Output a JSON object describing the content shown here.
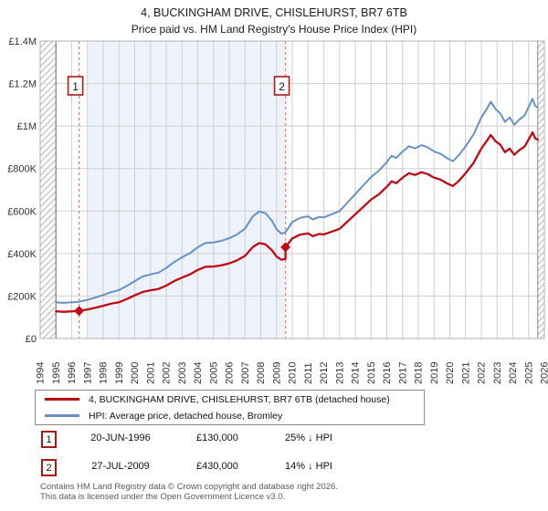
{
  "title": "4, BUCKINGHAM DRIVE, CHISLEHURST, BR7 6TB",
  "subtitle": "Price paid vs. HM Land Registry's House Price Index (HPI)",
  "colors": {
    "property_line": "#c00a14",
    "hpi_line": "#6790c4",
    "marker": "#c00a14",
    "event_dashed_line": "#f08080",
    "event_box_border": "#b01818",
    "shading": "#edf2fb",
    "grid": "#cfcfcf",
    "plot_border": "#b0b0b0",
    "hatch": "#b5b5b5",
    "data_edge_line": "#8a8a8a",
    "axis_text": "#333333"
  },
  "legend": [
    {
      "label": "4, BUCKINGHAM DRIVE, CHISLEHURST, BR7 6TB (detached house)",
      "color": "#c00a14"
    },
    {
      "label": "HPI: Average price, detached house, Bromley",
      "color": "#6790c4"
    }
  ],
  "events": [
    {
      "num": "1",
      "date": "20-JUN-1996",
      "price": "£130,000",
      "hpi_note": "25% ↓ HPI",
      "year": 1996.47,
      "value_k": 130
    },
    {
      "num": "2",
      "date": "27-JUL-2009",
      "price": "£430,000",
      "hpi_note": "14% ↓ HPI",
      "year": 2009.57,
      "value_k": 430
    }
  ],
  "footer": {
    "line1": "Contains HM Land Registry data © Crown copyright and database right 2026.",
    "line2": "This data is licensed under the Open Government Licence v3.0."
  },
  "chart_data": {
    "type": "line",
    "x_range": [
      1994,
      2026
    ],
    "y_range_k": [
      0,
      1400
    ],
    "grid": true,
    "legend_position": "bottom",
    "x_ticks": [
      1994,
      1995,
      1996,
      1997,
      1998,
      1999,
      2000,
      2001,
      2002,
      2003,
      2004,
      2005,
      2006,
      2007,
      2008,
      2009,
      2010,
      2011,
      2012,
      2013,
      2014,
      2015,
      2016,
      2017,
      2018,
      2019,
      2020,
      2021,
      2022,
      2023,
      2024,
      2025,
      2026
    ],
    "y_ticks": [
      {
        "v": 0,
        "label": "£0"
      },
      {
        "v": 200,
        "label": "£200K"
      },
      {
        "v": 400,
        "label": "£400K"
      },
      {
        "v": 600,
        "label": "£600K"
      },
      {
        "v": 800,
        "label": "£800K"
      },
      {
        "v": 1000,
        "label": "£1M"
      },
      {
        "v": 1200,
        "label": "£1.2M"
      },
      {
        "v": 1400,
        "label": "£1.4M"
      }
    ],
    "data_start_year": 1995.0,
    "data_end_year": 2025.58,
    "shaded_region_years": [
      1997.0,
      2009.57
    ],
    "event_marker_years": [
      1996.47,
      2009.57
    ],
    "series": [
      {
        "name": "HPI: Average price, detached house, Bromley",
        "color": "#6790c4",
        "width": 2,
        "x": [
          1995.0,
          1995.5,
          1996.0,
          1996.47,
          1997.0,
          1997.5,
          1998.0,
          1998.5,
          1999.0,
          1999.5,
          2000.0,
          2000.5,
          2001.0,
          2001.5,
          2002.0,
          2002.5,
          2003.0,
          2003.5,
          2004.0,
          2004.5,
          2005.0,
          2005.5,
          2006.0,
          2006.5,
          2007.0,
          2007.5,
          2007.9,
          2008.3,
          2008.7,
          2009.0,
          2009.3,
          2009.57,
          2010.0,
          2010.5,
          2011.0,
          2011.3,
          2011.7,
          2012.0,
          2012.5,
          2013.0,
          2013.5,
          2014.0,
          2014.5,
          2015.0,
          2015.5,
          2016.0,
          2016.3,
          2016.6,
          2017.0,
          2017.4,
          2017.8,
          2018.2,
          2018.6,
          2019.0,
          2019.4,
          2019.8,
          2020.2,
          2020.6,
          2021.0,
          2021.5,
          2022.0,
          2022.3,
          2022.6,
          2022.9,
          2023.2,
          2023.5,
          2023.8,
          2024.1,
          2024.4,
          2024.75,
          2025.0,
          2025.25,
          2025.42,
          2025.58
        ],
        "y_thousands": [
          170,
          168,
          171,
          173,
          182,
          193,
          205,
          218,
          228,
          248,
          270,
          292,
          302,
          310,
          332,
          360,
          382,
          402,
          430,
          450,
          452,
          460,
          472,
          490,
          518,
          575,
          598,
          590,
          555,
          515,
          494,
          500,
          548,
          568,
          575,
          560,
          572,
          570,
          585,
          600,
          640,
          680,
          720,
          760,
          790,
          830,
          860,
          850,
          880,
          905,
          895,
          910,
          900,
          880,
          870,
          850,
          835,
          865,
          905,
          960,
          1040,
          1075,
          1114,
          1080,
          1060,
          1020,
          1040,
          1006,
          1030,
          1050,
          1090,
          1128,
          1095,
          1088
        ]
      },
      {
        "name": "4, BUCKINGHAM DRIVE, CHISLEHURST, BR7 6TB (detached house)",
        "color": "#c00a14",
        "width": 2.3,
        "x": [
          1995.0,
          1995.5,
          1996.0,
          1996.47,
          1997.0,
          1997.5,
          1998.0,
          1998.5,
          1999.0,
          1999.5,
          2000.0,
          2000.5,
          2001.0,
          2001.5,
          2002.0,
          2002.5,
          2003.0,
          2003.5,
          2004.0,
          2004.5,
          2005.0,
          2005.5,
          2006.0,
          2006.5,
          2007.0,
          2007.5,
          2007.9,
          2008.3,
          2008.7,
          2009.0,
          2009.3,
          2009.57,
          2009.57,
          2010.0,
          2010.5,
          2011.0,
          2011.3,
          2011.7,
          2012.0,
          2012.5,
          2013.0,
          2013.5,
          2014.0,
          2014.5,
          2015.0,
          2015.5,
          2016.0,
          2016.3,
          2016.6,
          2017.0,
          2017.4,
          2017.8,
          2018.2,
          2018.6,
          2019.0,
          2019.4,
          2019.8,
          2020.2,
          2020.6,
          2021.0,
          2021.5,
          2022.0,
          2022.3,
          2022.6,
          2022.9,
          2023.2,
          2023.5,
          2023.8,
          2024.1,
          2024.4,
          2024.75,
          2025.0,
          2025.25,
          2025.42,
          2025.58
        ],
        "y_thousands": [
          128,
          126,
          128,
          130,
          137,
          145,
          154,
          164,
          171,
          186,
          203,
          219,
          227,
          233,
          249,
          270,
          287,
          302,
          323,
          338,
          339,
          345,
          354,
          368,
          389,
          431,
          449,
          443,
          416,
          386,
          371,
          375,
          430,
          471,
          489,
          495,
          482,
          492,
          490,
          503,
          516,
          550,
          585,
          619,
          654,
          679,
          714,
          740,
          731,
          757,
          778,
          770,
          783,
          774,
          757,
          748,
          731,
          718,
          744,
          778,
          826,
          894,
          925,
          958,
          929,
          912,
          877,
          894,
          865,
          886,
          903,
          937,
          970,
          942,
          936
        ]
      }
    ],
    "sale_points": [
      {
        "year": 1996.47,
        "value_k": 130
      },
      {
        "year": 2009.57,
        "value_k": 430
      }
    ]
  }
}
